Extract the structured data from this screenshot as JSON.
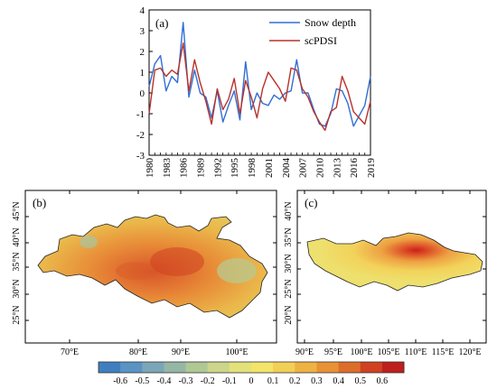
{
  "chart_data": [
    {
      "type": "line",
      "panel_label": "(a)",
      "x": [
        1980,
        1981,
        1982,
        1983,
        1984,
        1985,
        1986,
        1987,
        1988,
        1989,
        1990,
        1991,
        1992,
        1993,
        1994,
        1995,
        1996,
        1997,
        1998,
        1999,
        2000,
        2001,
        2002,
        2003,
        2004,
        2005,
        2006,
        2007,
        2008,
        2009,
        2010,
        2011,
        2012,
        2013,
        2014,
        2015,
        2016,
        2017,
        2018,
        2019
      ],
      "x_ticks": [
        "1980",
        "1983",
        "1986",
        "1989",
        "1992",
        "1995",
        "1998",
        "2001",
        "2004",
        "2007",
        "2010",
        "2013",
        "2016",
        "2019"
      ],
      "y_ticks": [
        "4",
        "3",
        "2",
        "1",
        "0",
        "-1",
        "-2",
        "-3"
      ],
      "xlim": [
        1980,
        2019
      ],
      "ylim": [
        -3,
        4
      ],
      "xlabel": "",
      "ylabel": "",
      "legend_position": "top-right",
      "series": [
        {
          "name": "Snow depth",
          "color": "#2f6fd6",
          "values": [
            0.3,
            1.4,
            1.8,
            0.1,
            0.8,
            0.5,
            3.4,
            -0.2,
            1.1,
            0.0,
            -0.2,
            -1.2,
            0.1,
            -1.4,
            -0.6,
            0.1,
            -1.3,
            1.5,
            -0.8,
            0.0,
            -0.5,
            -0.6,
            -0.1,
            -0.3,
            0.0,
            0.1,
            1.6,
            0.0,
            0.0,
            -0.8,
            -1.5,
            -1.6,
            -1.0,
            0.2,
            0.1,
            -0.5,
            -1.6,
            -1.1,
            -0.6,
            0.8
          ]
        },
        {
          "name": "scPDSI",
          "color": "#b8322a",
          "values": [
            -1.0,
            1.1,
            1.2,
            0.8,
            1.1,
            0.9,
            2.4,
            0.1,
            1.6,
            0.5,
            -0.4,
            -1.5,
            0.2,
            -0.8,
            -0.3,
            0.7,
            -1.0,
            0.6,
            -0.2,
            -1.2,
            0.2,
            1.0,
            0.6,
            0.2,
            -0.4,
            1.2,
            1.1,
            0.2,
            -0.2,
            -0.9,
            -1.4,
            -1.8,
            -0.9,
            -0.7,
            0.8,
            0.1,
            -0.9,
            -1.2,
            -1.5,
            -0.4
          ]
        }
      ]
    },
    {
      "type": "heatmap",
      "panel_label": "(b)",
      "x_ticks": [
        "70°E",
        "80°E",
        "90°E",
        "100°E"
      ],
      "y_ticks": [
        "45°N",
        "40°N",
        "35°N",
        "30°N",
        "25°N"
      ]
    },
    {
      "type": "heatmap",
      "panel_label": "(c)",
      "x_ticks": [
        "90°E",
        "95°E",
        "100°E",
        "105°E",
        "110°E",
        "115°E",
        "120°E"
      ],
      "y_ticks": [
        "40°N",
        "35°N",
        "30°N",
        "25°N",
        "20°N"
      ]
    },
    {
      "type": "colorbar",
      "tick_labels": [
        "-0.6",
        "-0.5",
        "-0.4",
        "-0.3",
        "-0.2",
        "-0.1",
        "0",
        "0.1",
        "0.2",
        "0.3",
        "0.4",
        "0.5",
        "0.6"
      ],
      "colors": [
        "#3f7fbf",
        "#5a93c4",
        "#7aa6b8",
        "#96b7a6",
        "#b0c796",
        "#cbd68a",
        "#e3e17a",
        "#f3e46a",
        "#f2cf55",
        "#eeb244",
        "#e89236",
        "#dd6d2a",
        "#cf4121",
        "#bf1f1d"
      ]
    }
  ]
}
